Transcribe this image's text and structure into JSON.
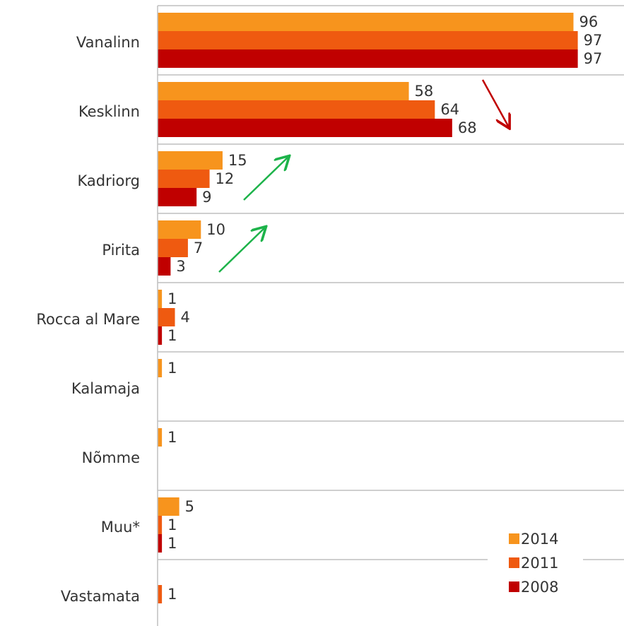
{
  "chart_data": {
    "type": "hbar",
    "categories": [
      "Vanalinn",
      "Kesklinn",
      "Kadriorg",
      "Pirita",
      "Rocca al Mare",
      "Kalamaja",
      "Nõmme",
      "Muu*",
      "Vastamata"
    ],
    "series": [
      {
        "name": "2014",
        "color": "#f7941d",
        "values": [
          96,
          58,
          15,
          10,
          1,
          1,
          1,
          5,
          null
        ]
      },
      {
        "name": "2011",
        "color": "#ef5a10",
        "values": [
          97,
          64,
          12,
          7,
          4,
          null,
          null,
          1,
          1
        ]
      },
      {
        "name": "2008",
        "color": "#c00000",
        "values": [
          97,
          68,
          9,
          3,
          1,
          null,
          null,
          1,
          null
        ]
      }
    ],
    "xlim": [
      0,
      100
    ],
    "legend": "bottom-right"
  }
}
